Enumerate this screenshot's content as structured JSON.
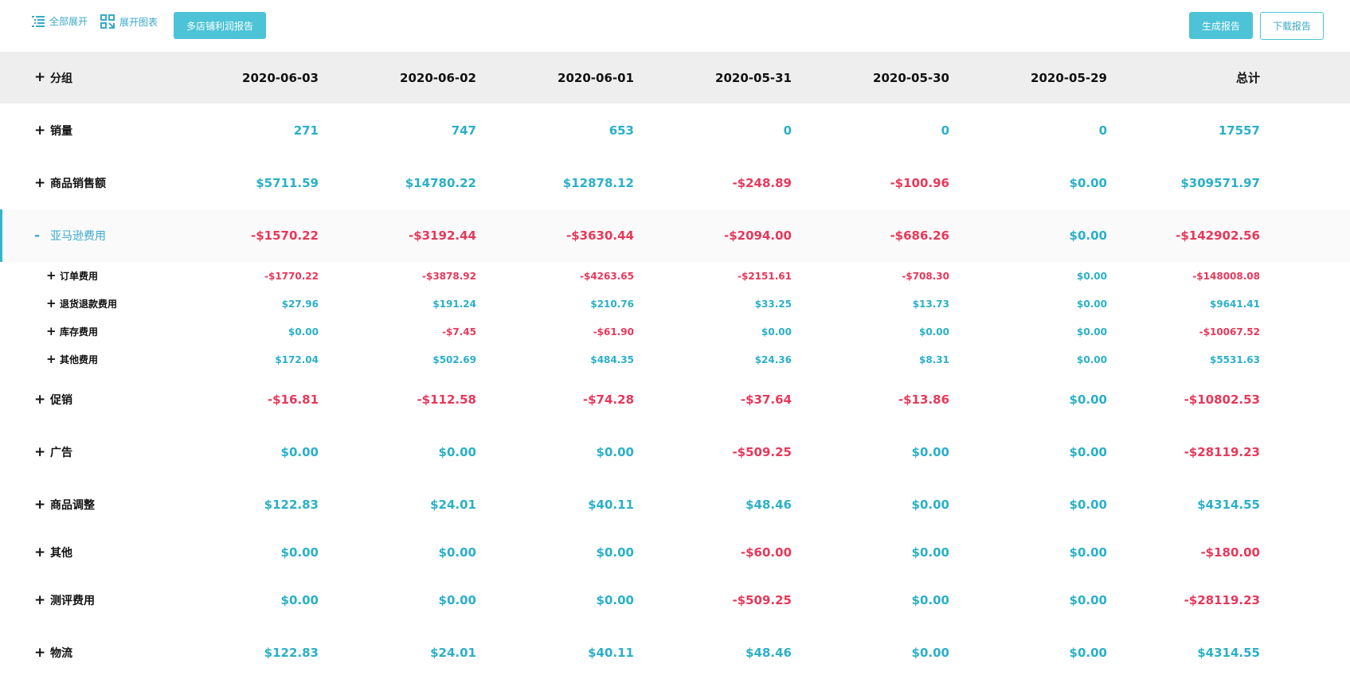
{
  "toolbar": {
    "expand_all": "全部展开",
    "expand_chart": "展开图表",
    "multi_store_report": "多店铺利润报告",
    "generate_report": "生成报告",
    "download_report": "下载报告"
  },
  "table": {
    "group_label": "分组",
    "columns": [
      "2020-06-03",
      "2020-06-02",
      "2020-06-01",
      "2020-05-31",
      "2020-05-30",
      "2020-05-29",
      "总计"
    ],
    "rows": [
      {
        "label": "销量",
        "toggle": "+",
        "values": [
          "271",
          "747",
          "653",
          "0",
          "0",
          "0",
          "17557"
        ]
      },
      {
        "label": "商品销售额",
        "toggle": "+",
        "values": [
          "$5711.59",
          "$14780.22",
          "$12878.12",
          "-$248.89",
          "-$100.96",
          "$0.00",
          "$309571.97"
        ]
      },
      {
        "label": "亚马逊费用",
        "toggle": "-",
        "values": [
          "-$1570.22",
          "-$3192.44",
          "-$3630.44",
          "-$2094.00",
          "-$686.26",
          "$0.00",
          "-$142902.56"
        ]
      },
      {
        "label": "订单费用",
        "toggle": "+",
        "values": [
          "-$1770.22",
          "-$3878.92",
          "-$4263.65",
          "-$2151.61",
          "-$708.30",
          "$0.00",
          "-$148008.08"
        ]
      },
      {
        "label": "退货退款费用",
        "toggle": "+",
        "values": [
          "$27.96",
          "$191.24",
          "$210.76",
          "$33.25",
          "$13.73",
          "$0.00",
          "$9641.41"
        ]
      },
      {
        "label": "库存费用",
        "toggle": "+",
        "values": [
          "$0.00",
          "-$7.45",
          "-$61.90",
          "$0.00",
          "$0.00",
          "$0.00",
          "-$10067.52"
        ]
      },
      {
        "label": "其他费用",
        "toggle": "+",
        "values": [
          "$172.04",
          "$502.69",
          "$484.35",
          "$24.36",
          "$8.31",
          "$0.00",
          "$5531.63"
        ]
      },
      {
        "label": "促销",
        "toggle": "+",
        "values": [
          "-$16.81",
          "-$112.58",
          "-$74.28",
          "-$37.64",
          "-$13.86",
          "$0.00",
          "-$10802.53"
        ]
      },
      {
        "label": "广告",
        "toggle": "+",
        "values": [
          "$0.00",
          "$0.00",
          "$0.00",
          "-$509.25",
          "$0.00",
          "$0.00",
          "-$28119.23"
        ]
      },
      {
        "label": "商品调整",
        "toggle": "+",
        "values": [
          "$122.83",
          "$24.01",
          "$40.11",
          "$48.46",
          "$0.00",
          "$0.00",
          "$4314.55"
        ]
      },
      {
        "label": "其他",
        "toggle": "+",
        "values": [
          "$0.00",
          "$0.00",
          "$0.00",
          "-$60.00",
          "$0.00",
          "$0.00",
          "-$180.00"
        ]
      },
      {
        "label": "测评费用",
        "toggle": "+",
        "values": [
          "$0.00",
          "$0.00",
          "$0.00",
          "-$509.25",
          "$0.00",
          "$0.00",
          "-$28119.23"
        ]
      },
      {
        "label": "物流",
        "toggle": "+",
        "values": [
          "$122.83",
          "$24.01",
          "$40.11",
          "$48.46",
          "$0.00",
          "$0.00",
          "$4314.55"
        ]
      }
    ]
  },
  "colors": {
    "accent": "#4cc3d6",
    "positive": "#2bb0c8",
    "negative": "#e8385a",
    "header_bg": "#eeeeee"
  }
}
